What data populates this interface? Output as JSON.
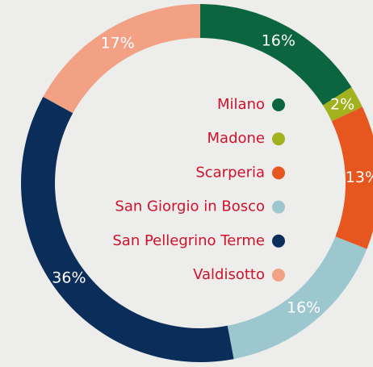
{
  "chart_data": {
    "type": "donut",
    "categories": [
      "Milano",
      "Madone",
      "Scarperia",
      "San Giorgio in Bosco",
      "San Pellegrino Terme",
      "Valdisotto"
    ],
    "values": [
      16,
      2,
      13,
      16,
      36,
      17
    ],
    "value_labels": [
      "16%",
      "2%",
      "13%",
      "16%",
      "36%",
      "17%"
    ],
    "colors": [
      "#0b6640",
      "#a2b21f",
      "#e8561f",
      "#9cc7cf",
      "#0b2d5a",
      "#f2a184"
    ],
    "legend": "center"
  }
}
